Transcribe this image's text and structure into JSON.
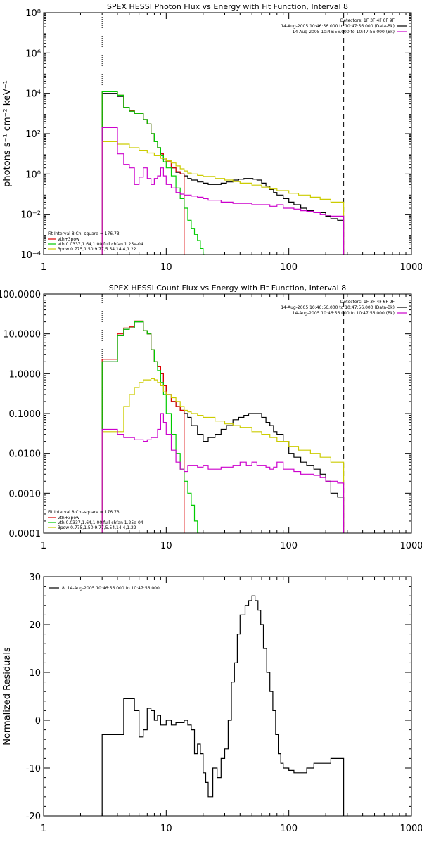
{
  "chart_data": [
    {
      "type": "line",
      "title": "SPEX HESSI Photon Flux vs Energy with Fit Function, Interval 8",
      "ylabel": "photons s⁻¹ cm⁻² keV⁻¹",
      "xlabel": "",
      "xscale": "log",
      "yscale": "log",
      "xlim": [
        1,
        1000
      ],
      "ylim": [
        0.0001,
        100000000
      ],
      "xticks": [
        1,
        10,
        100,
        1000
      ],
      "xticklabels": [
        "1",
        "10",
        "100",
        "1000"
      ],
      "yticks": [
        0.0001,
        0.01,
        1,
        100,
        10000,
        1000000,
        100000000
      ],
      "yticklabels": [
        "10⁻⁴",
        "10⁻²",
        "10⁰",
        "10²",
        "10⁴",
        "10⁶",
        "10⁸"
      ],
      "vlines": [
        {
          "x": 3,
          "style": "dotted"
        },
        {
          "x": 280,
          "style": "dashed"
        }
      ],
      "legend_top_right": [
        "Detectors: 1F 3F 4F 6F 9F",
        "14-Aug-2005 10:46:56.000 to 10:47:56.000 (Data-Bk)",
        "14-Aug-2005 10:46:56.000 to 10:47:56.000 (Bk)"
      ],
      "legend_top_right_colors": [
        "",
        "#000000",
        "#cc00cc"
      ],
      "fit_text": "Fit Interval 8   Chi-square = 176.73",
      "legend_bottom_left": [
        "vth+3pow",
        "vth 0.0337,1.64,1.00  full chfan 1.25e-04",
        "3pow 0.775,1.50,9.77,5.54,14.4,1.22"
      ],
      "legend_bottom_left_colors": [
        "#dd0000",
        "#00cc00",
        "#cccc00"
      ],
      "series": [
        {
          "color": "#000000",
          "x": [
            3,
            3.5,
            4,
            4.5,
            5,
            5.5,
            6,
            6.5,
            7,
            7.5,
            8,
            8.5,
            9,
            9.5,
            10,
            11,
            12,
            13,
            14,
            15,
            16,
            18,
            20,
            22,
            25,
            28,
            31,
            35,
            39,
            43,
            47,
            51,
            55,
            60,
            65,
            70,
            75,
            80,
            90,
            100,
            110,
            125,
            140,
            160,
            180,
            200,
            220,
            250,
            280
          ],
          "y": [
            10000,
            10000,
            7000,
            2000,
            1300,
            1000,
            1000,
            500,
            300,
            100,
            40,
            20,
            10,
            5,
            4,
            2,
            1.2,
            1,
            0.8,
            0.6,
            0.5,
            0.4,
            0.35,
            0.3,
            0.3,
            0.35,
            0.4,
            0.5,
            0.55,
            0.6,
            0.6,
            0.55,
            0.5,
            0.35,
            0.25,
            0.17,
            0.12,
            0.09,
            0.06,
            0.04,
            0.03,
            0.02,
            0.015,
            0.012,
            0.012,
            0.008,
            0.006,
            0.005,
            0.005
          ]
        },
        {
          "color": "#dd0000",
          "x": [
            3,
            3.5,
            4,
            4.5,
            5,
            5.5,
            6,
            6.5,
            7,
            7.5,
            8,
            8.5,
            9,
            9.5,
            10,
            11,
            12,
            13,
            14
          ],
          "y": [
            12000,
            12000,
            8000,
            2000,
            1400,
            1000,
            1000,
            500,
            300,
            100,
            40,
            20,
            10,
            5,
            4,
            2,
            1.3,
            1,
            0.9
          ]
        },
        {
          "color": "#00cc00",
          "x": [
            3,
            3.5,
            4,
            4.5,
            5,
            5.5,
            6,
            6.5,
            7,
            7.5,
            8,
            8.5,
            9,
            9.5,
            10,
            11,
            12,
            13,
            14,
            15,
            16,
            17,
            18,
            19,
            20,
            20.5
          ],
          "y": [
            12000,
            12000,
            8000,
            2000,
            1300,
            1000,
            1000,
            500,
            300,
            100,
            40,
            20,
            8,
            4,
            2,
            0.8,
            0.2,
            0.06,
            0.02,
            0.005,
            0.002,
            0.001,
            0.0005,
            0.0002,
            0.0001,
            5e-05
          ]
        },
        {
          "color": "#cccc00",
          "x": [
            3,
            3.5,
            4,
            5,
            6,
            7,
            8,
            9,
            10,
            11,
            12,
            13,
            14,
            15,
            16,
            18,
            20,
            25,
            30,
            35,
            40,
            50,
            60,
            70,
            80,
            100,
            120,
            150,
            180,
            220,
            280
          ],
          "y": [
            40,
            40,
            30,
            20,
            15,
            11,
            8,
            6,
            4.5,
            3.5,
            2.5,
            1.8,
            1.4,
            1.1,
            1,
            0.85,
            0.75,
            0.6,
            0.5,
            0.42,
            0.35,
            0.28,
            0.22,
            0.18,
            0.15,
            0.11,
            0.09,
            0.07,
            0.055,
            0.04,
            0.03
          ]
        },
        {
          "color": "#cc00cc",
          "x": [
            3,
            3.5,
            4,
            4.5,
            5,
            5.5,
            6,
            6.5,
            7,
            7.5,
            8,
            8.5,
            9,
            9.5,
            10,
            11,
            12,
            13,
            14,
            15,
            16,
            18,
            20,
            22,
            25,
            28,
            31,
            35,
            40,
            45,
            50,
            55,
            60,
            65,
            70,
            75,
            80,
            90,
            100,
            110,
            125,
            140,
            160,
            180,
            200,
            220,
            250,
            280
          ],
          "y": [
            200,
            200,
            10,
            3,
            2,
            0.3,
            0.7,
            2,
            0.6,
            0.3,
            0.6,
            0.8,
            2,
            0.8,
            0.3,
            0.2,
            0.12,
            0.1,
            0.09,
            0.09,
            0.08,
            0.07,
            0.06,
            0.05,
            0.05,
            0.04,
            0.04,
            0.035,
            0.035,
            0.035,
            0.03,
            0.03,
            0.03,
            0.03,
            0.025,
            0.025,
            0.03,
            0.02,
            0.02,
            0.018,
            0.015,
            0.014,
            0.012,
            0.01,
            0.009,
            0.008,
            0.008,
            0.007
          ]
        }
      ]
    },
    {
      "type": "line",
      "title": "SPEX HESSI Count Flux vs Energy with Fit Function, Interval 8",
      "ylabel": "",
      "xlabel": "",
      "xscale": "log",
      "yscale": "log",
      "xlim": [
        1,
        1000
      ],
      "ylim": [
        0.0001,
        100
      ],
      "xticks": [
        1,
        10,
        100,
        1000
      ],
      "xticklabels": [
        "1",
        "10",
        "100",
        "1000"
      ],
      "yticks": [
        0.0001,
        0.001,
        0.01,
        0.1,
        1,
        10,
        100
      ],
      "yticklabels": [
        "0.0001",
        "0.0010",
        "0.0100",
        "0.1000",
        "1.0000",
        "10.0000",
        "100.0000"
      ],
      "vlines": [
        {
          "x": 3,
          "style": "dotted"
        },
        {
          "x": 280,
          "style": "dashed"
        }
      ],
      "legend_top_right": [
        "Detectors: 1F 3F 4F 6F 9F",
        "14-Aug-2005 10:46:56.000 to 10:47:56.000 (Data-Bk)",
        "14-Aug-2005 10:46:56.000 to 10:47:56.000 (Bk)"
      ],
      "legend_top_right_colors": [
        "",
        "#000000",
        "#cc00cc"
      ],
      "fit_text": "Fit Interval 8   Chi-square = 176.73",
      "legend_bottom_left": [
        "vth+3pow",
        "vth 0.0337,1.64,1.00  full chfan 1.25e-04",
        "3pow 0.775,1.50,9.77,5.54,14.4,1.22"
      ],
      "legend_bottom_left_colors": [
        "#dd0000",
        "#00cc00",
        "#cccc00"
      ],
      "series": [
        {
          "color": "#000000",
          "x": [
            3,
            3.5,
            4,
            4.5,
            5,
            5.5,
            6,
            6.5,
            7,
            7.5,
            8,
            8.5,
            9,
            9.5,
            10,
            11,
            12,
            13,
            14,
            15,
            16,
            18,
            20,
            22,
            25,
            28,
            31,
            35,
            39,
            43,
            47,
            51,
            55,
            60,
            65,
            70,
            75,
            80,
            90,
            100,
            110,
            125,
            140,
            160,
            180,
            200,
            220,
            250,
            280
          ],
          "y": [
            2,
            2,
            9,
            13,
            14,
            20,
            20,
            12,
            10,
            4,
            2,
            1.5,
            1,
            0.5,
            0.3,
            0.2,
            0.15,
            0.12,
            0.1,
            0.08,
            0.05,
            0.03,
            0.02,
            0.025,
            0.03,
            0.04,
            0.05,
            0.07,
            0.08,
            0.09,
            0.1,
            0.1,
            0.1,
            0.08,
            0.06,
            0.05,
            0.035,
            0.03,
            0.02,
            0.01,
            0.008,
            0.006,
            0.005,
            0.004,
            0.003,
            0.002,
            0.001,
            0.0008,
            0.0006
          ]
        },
        {
          "color": "#dd0000",
          "x": [
            3,
            3.5,
            4,
            4.5,
            5,
            5.5,
            6,
            6.5,
            7,
            7.5,
            8,
            8.5,
            9,
            9.5,
            10,
            11,
            12,
            13,
            14
          ],
          "y": [
            2.3,
            2.3,
            10,
            14,
            15,
            21,
            21,
            12,
            10,
            4,
            2,
            1.5,
            1,
            0.5,
            0.3,
            0.2,
            0.15,
            0.12,
            0.1
          ]
        },
        {
          "color": "#00cc00",
          "x": [
            3,
            3.5,
            4,
            4.5,
            5,
            5.5,
            6,
            6.5,
            7,
            7.5,
            8,
            8.5,
            9,
            9.5,
            10,
            11,
            12,
            13,
            14,
            15,
            16,
            17,
            18,
            18.5
          ],
          "y": [
            2,
            2,
            9,
            13,
            14,
            20,
            20,
            12,
            10,
            4,
            2,
            1.2,
            0.6,
            0.3,
            0.1,
            0.03,
            0.01,
            0.004,
            0.002,
            0.001,
            0.0005,
            0.0002,
            0.0001,
            5e-05
          ]
        },
        {
          "color": "#cccc00",
          "x": [
            3,
            3.5,
            4,
            4.5,
            5,
            5.5,
            6,
            6.5,
            7,
            7.5,
            8,
            8.5,
            9,
            9.5,
            10,
            11,
            12,
            13,
            14,
            15,
            16,
            18,
            20,
            25,
            30,
            35,
            40,
            50,
            60,
            70,
            80,
            100,
            120,
            150,
            180,
            220,
            280
          ],
          "y": [
            0.035,
            0.035,
            0.035,
            0.15,
            0.3,
            0.45,
            0.6,
            0.7,
            0.7,
            0.75,
            0.7,
            0.6,
            0.5,
            0.35,
            0.3,
            0.25,
            0.2,
            0.15,
            0.12,
            0.11,
            0.1,
            0.09,
            0.08,
            0.065,
            0.055,
            0.05,
            0.045,
            0.035,
            0.03,
            0.025,
            0.02,
            0.015,
            0.012,
            0.01,
            0.008,
            0.006,
            0.004
          ]
        },
        {
          "color": "#cc00cc",
          "x": [
            3,
            3.5,
            4,
            4.5,
            5,
            5.5,
            6,
            6.5,
            7,
            7.5,
            8,
            8.5,
            9,
            9.5,
            10,
            11,
            12,
            13,
            14,
            15,
            16,
            18,
            20,
            22,
            25,
            28,
            31,
            35,
            40,
            45,
            50,
            55,
            60,
            65,
            70,
            75,
            80,
            90,
            100,
            110,
            125,
            140,
            160,
            180,
            200,
            220,
            250,
            280
          ],
          "y": [
            0.04,
            0.04,
            0.03,
            0.025,
            0.025,
            0.022,
            0.022,
            0.02,
            0.022,
            0.025,
            0.025,
            0.04,
            0.1,
            0.06,
            0.03,
            0.012,
            0.006,
            0.004,
            0.0035,
            0.005,
            0.005,
            0.0045,
            0.005,
            0.004,
            0.004,
            0.0045,
            0.0045,
            0.005,
            0.006,
            0.005,
            0.006,
            0.005,
            0.005,
            0.0045,
            0.004,
            0.0045,
            0.006,
            0.004,
            0.004,
            0.0035,
            0.003,
            0.003,
            0.0028,
            0.0025,
            0.002,
            0.002,
            0.0018,
            0.0015
          ]
        }
      ]
    },
    {
      "type": "line",
      "title": "",
      "ylabel": "Normalized Residuals",
      "xlabel": "",
      "xscale": "log",
      "yscale": "linear",
      "xlim": [
        1,
        1000
      ],
      "ylim": [
        -20,
        30
      ],
      "xticks": [
        1,
        10,
        100,
        1000
      ],
      "xticklabels": [
        "1",
        "10",
        "100",
        "1000"
      ],
      "yticks": [
        -20,
        -10,
        0,
        10,
        20,
        30
      ],
      "yticklabels": [
        "-20",
        "-10",
        "0",
        "10",
        "20",
        "30"
      ],
      "legend_top_left": [
        "8, 14-Aug-2005 10:46:56.000 to 10:47:56.000"
      ],
      "legend_top_left_colors": [
        "#000000"
      ],
      "series": [
        {
          "color": "#000000",
          "x": [
            3,
            3.5,
            4,
            4.5,
            5,
            5.5,
            6,
            6.5,
            7,
            7.5,
            8,
            8.5,
            9,
            9.5,
            10,
            11,
            12,
            13,
            14,
            15,
            16,
            17,
            18,
            19,
            20,
            21,
            22,
            24,
            26,
            28,
            30,
            32,
            34,
            36,
            38,
            40,
            42,
            44,
            47,
            50,
            53,
            56,
            59,
            62,
            66,
            70,
            74,
            78,
            82,
            86,
            90,
            95,
            100,
            110,
            120,
            130,
            140,
            150,
            160,
            170,
            180,
            190,
            200,
            220,
            240,
            260,
            280
          ],
          "y": [
            -3,
            -3,
            -3,
            4.5,
            4.5,
            2,
            -3.5,
            -2,
            2.5,
            2,
            0,
            1,
            -1,
            -1,
            0,
            -1,
            -0.5,
            -0.5,
            0,
            -1,
            -2,
            -7,
            -5,
            -7,
            -11,
            -13,
            -16,
            -10,
            -12,
            -8,
            -6,
            0,
            8,
            12,
            18,
            22,
            22,
            24,
            25,
            26,
            25,
            23,
            20,
            15,
            10,
            6,
            2,
            -3,
            -7,
            -9,
            -10,
            -10,
            -10.5,
            -11,
            -11,
            -11,
            -10,
            -10,
            -9,
            -9,
            -9,
            -9,
            -9,
            -8,
            -8,
            -8,
            -8
          ]
        }
      ]
    }
  ]
}
